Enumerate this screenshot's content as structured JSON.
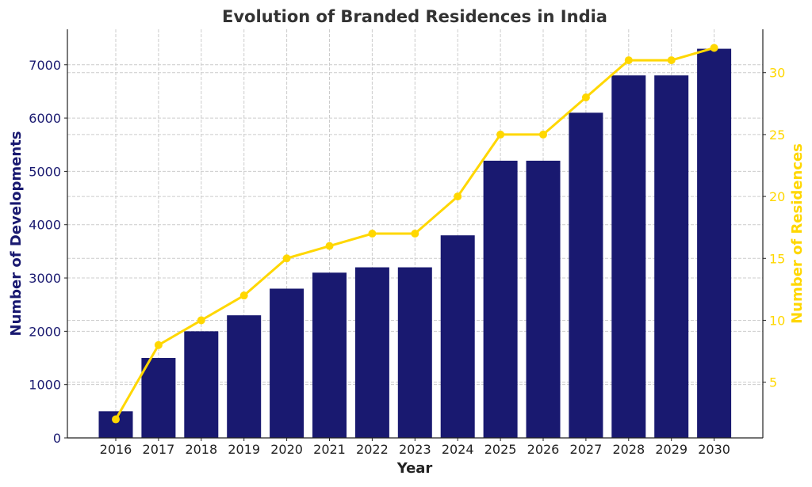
{
  "chart_data": {
    "type": "bar+line",
    "title": "Evolution of Branded Residences in India",
    "xlabel": "Year",
    "ylabel": "Number of Developments",
    "y2label": "Number of Residences",
    "categories": [
      "2016",
      "2017",
      "2018",
      "2019",
      "2020",
      "2021",
      "2022",
      "2023",
      "2024",
      "2025",
      "2026",
      "2027",
      "2028",
      "2029",
      "2030"
    ],
    "series": [
      {
        "type": "bar",
        "axis": "left",
        "color": "#191970",
        "values": [
          500,
          1500,
          2000,
          2300,
          2800,
          3100,
          3200,
          3200,
          3800,
          5200,
          5200,
          6100,
          6800,
          6800,
          7300
        ]
      },
      {
        "type": "line",
        "axis": "right",
        "color": "#FFD700",
        "values": [
          2,
          8,
          10,
          12,
          15,
          16,
          17,
          17,
          20,
          25,
          25,
          28,
          31,
          31,
          32
        ]
      }
    ],
    "ylim": [
      0,
      7665
    ],
    "y2lim": [
      0.5,
      33.5
    ],
    "yticks": [
      0,
      1000,
      2000,
      3000,
      4000,
      5000,
      6000,
      7000
    ],
    "y2ticks": [
      5,
      10,
      15,
      20,
      25,
      30
    ],
    "grid": true,
    "colors": {
      "left_axis": "#191970",
      "right_axis": "#FFD700",
      "title": "#333333"
    }
  }
}
